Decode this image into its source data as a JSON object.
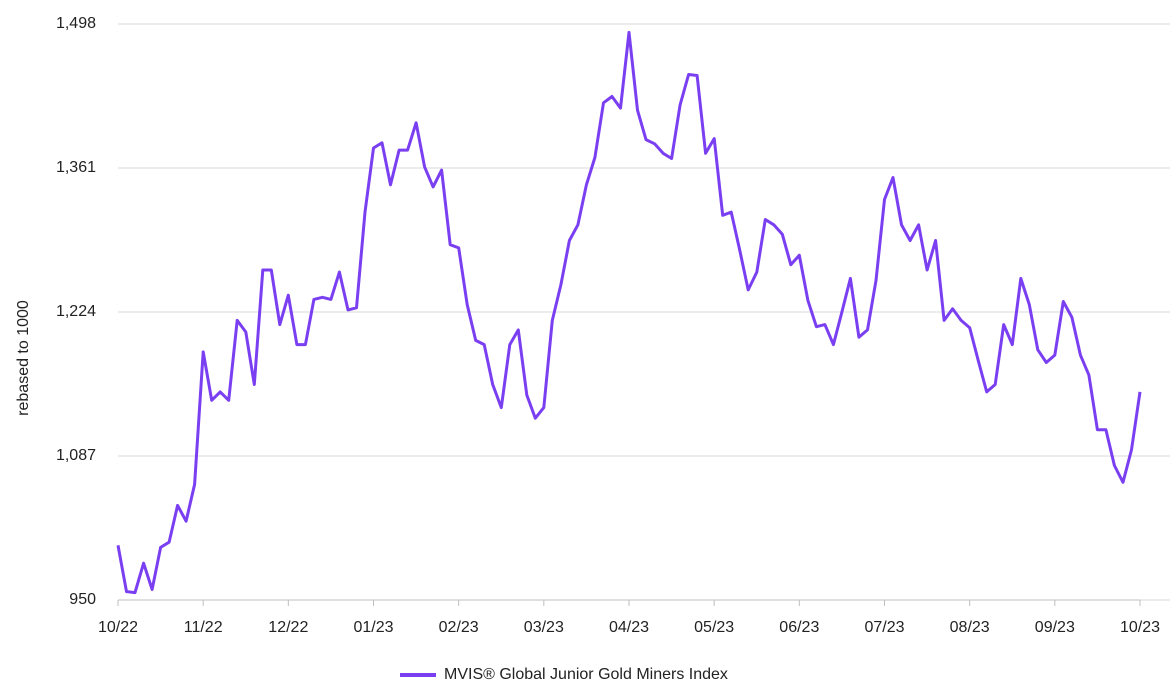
{
  "chart_data": {
    "type": "line",
    "y_label": "rebased to 1000",
    "categories": [
      "10/22",
      null,
      null,
      null,
      null,
      null,
      null,
      null,
      null,
      null,
      "11/22",
      null,
      null,
      null,
      null,
      null,
      null,
      null,
      null,
      null,
      "12/22",
      null,
      null,
      null,
      null,
      null,
      null,
      null,
      null,
      null,
      "01/23",
      null,
      null,
      null,
      null,
      null,
      null,
      null,
      null,
      null,
      "02/23",
      null,
      null,
      null,
      null,
      null,
      null,
      null,
      null,
      null,
      "03/23",
      null,
      null,
      null,
      null,
      null,
      null,
      null,
      null,
      null,
      "04/23",
      null,
      null,
      null,
      null,
      null,
      null,
      null,
      null,
      null,
      "05/23",
      null,
      null,
      null,
      null,
      null,
      null,
      null,
      null,
      null,
      "06/23",
      null,
      null,
      null,
      null,
      null,
      null,
      null,
      null,
      null,
      "07/23",
      null,
      null,
      null,
      null,
      null,
      null,
      null,
      null,
      null,
      "08/23",
      null,
      null,
      null,
      null,
      null,
      null,
      null,
      null,
      null,
      "09/23",
      null,
      null,
      null,
      null,
      null,
      null,
      null,
      null,
      null,
      "10/23"
    ],
    "series": [
      {
        "name": "MVIS® Global Junior Gold Miners Index",
        "color": "#7b3ff2",
        "values": [
          1002,
          958,
          957,
          985,
          960,
          1000,
          1005,
          1040,
          1025,
          1060,
          1186,
          1140,
          1148,
          1140,
          1216,
          1205,
          1155,
          1264,
          1264,
          1212,
          1240,
          1193,
          1193,
          1236,
          1238,
          1236,
          1262,
          1226,
          1228,
          1319,
          1380,
          1385,
          1345,
          1378,
          1378,
          1404,
          1362,
          1343,
          1359,
          1288,
          1285,
          1231,
          1197,
          1193,
          1155,
          1133,
          1193,
          1207,
          1145,
          1123,
          1133,
          1216,
          1250,
          1292,
          1307,
          1345,
          1371,
          1423,
          1429,
          1418,
          1490,
          1416,
          1388,
          1384,
          1375,
          1370,
          1421,
          1450,
          1449,
          1375,
          1389,
          1316,
          1319,
          1283,
          1245,
          1262,
          1312,
          1307,
          1298,
          1269,
          1278,
          1235,
          1210,
          1212,
          1193,
          1224,
          1256,
          1200,
          1207,
          1254,
          1331,
          1352,
          1307,
          1292,
          1307,
          1264,
          1292,
          1216,
          1227,
          1216,
          1209,
          1178,
          1148,
          1155,
          1212,
          1193,
          1256,
          1231,
          1188,
          1176,
          1183,
          1234,
          1219,
          1183,
          1164,
          1112,
          1112,
          1078,
          1062,
          1093,
          1148
        ]
      }
    ],
    "ylim": [
      950,
      1498
    ],
    "yticks": [
      {
        "value": 950,
        "label": "950"
      },
      {
        "value": 1087,
        "label": "1,087"
      },
      {
        "value": 1224,
        "label": "1,224"
      },
      {
        "value": 1361,
        "label": "1,361"
      },
      {
        "value": 1498,
        "label": "1,498"
      }
    ],
    "grid": true
  }
}
